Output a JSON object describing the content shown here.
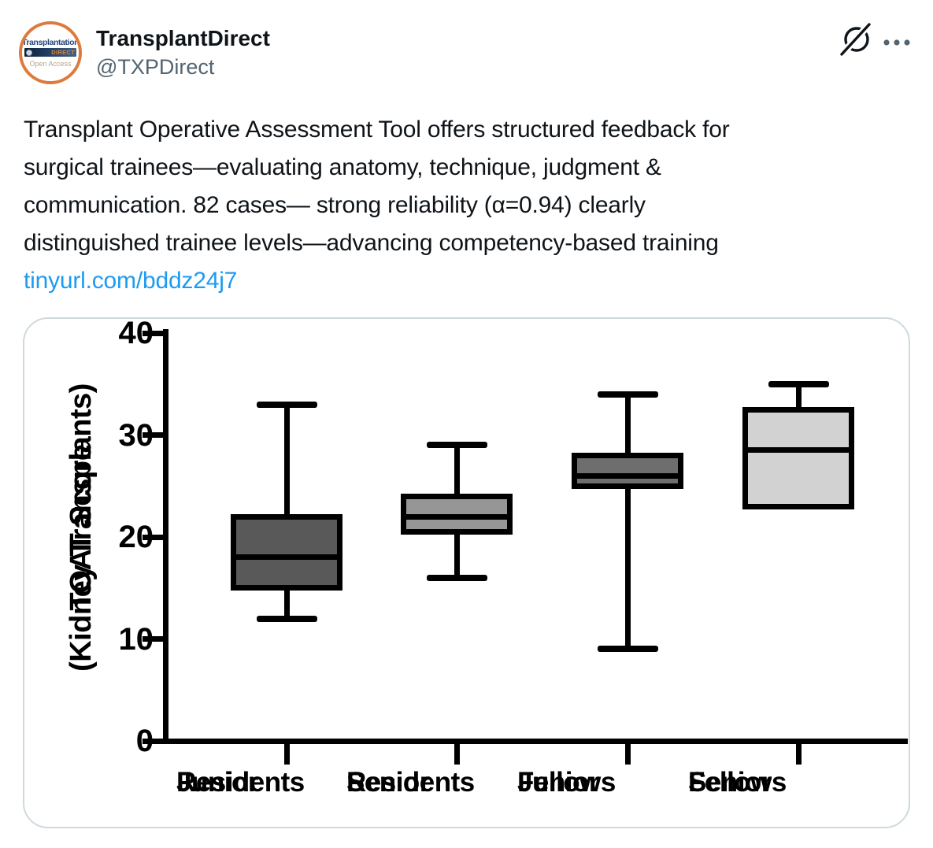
{
  "header": {
    "name": "TransplantDirect",
    "handle": "@TXPDirect",
    "avatar": {
      "line1": "Transplantation",
      "banner_text": "DIRECT",
      "line3": "Open Access",
      "ring_color": "#dd7b3c"
    },
    "icons": {
      "grok": "grok-slash-circle-icon",
      "more": "ellipsis-icon"
    }
  },
  "tweet": {
    "lines": [
      "Transplant Operative Assessment Tool offers structured feedback for",
      "surgical trainees—evaluating anatomy, technique, judgment &",
      "communication. 82 cases— strong reliability (α=0.94) clearly",
      "distinguished trainee levels—advancing competency-based training"
    ],
    "link": "tinyurl.com/bddz24j7"
  },
  "colors": {
    "text_primary": "#0f1419",
    "text_secondary": "#536471",
    "link_blue": "#1d9bf0",
    "card_border": "#cfd9de",
    "chart_stroke": "#000000"
  },
  "chart_data": {
    "type": "box",
    "title": "",
    "ylabel_lines": [
      "TOAT Score",
      "(Kidney Transplants)"
    ],
    "xlabel": "",
    "ylim": [
      0,
      40
    ],
    "yticks": [
      0,
      10,
      20,
      30,
      40
    ],
    "grid": false,
    "legend": "none",
    "categories": [
      [
        "Junior",
        "Residents"
      ],
      [
        "Senior",
        "Residents"
      ],
      [
        "Junior",
        "Fellows"
      ],
      [
        "Senior",
        "Fellows"
      ]
    ],
    "series": [
      {
        "name": "Junior Residents",
        "whisker_low": 12,
        "q1": 15,
        "median": 18,
        "q3": 22,
        "whisker_high": 33,
        "fill": "#595959"
      },
      {
        "name": "Senior Residents",
        "whisker_low": 16,
        "q1": 20.5,
        "median": 22,
        "q3": 24,
        "whisker_high": 29,
        "fill": "#969696"
      },
      {
        "name": "Junior Fellows",
        "whisker_low": 9,
        "q1": 25,
        "median": 26,
        "q3": 28,
        "whisker_high": 34,
        "fill": "#6e6e6e"
      },
      {
        "name": "Senior Fellows",
        "whisker_low": 23,
        "q1": 23,
        "median": 28.5,
        "q3": 32.5,
        "whisker_high": 35,
        "fill": "#d2d2d2"
      }
    ]
  }
}
